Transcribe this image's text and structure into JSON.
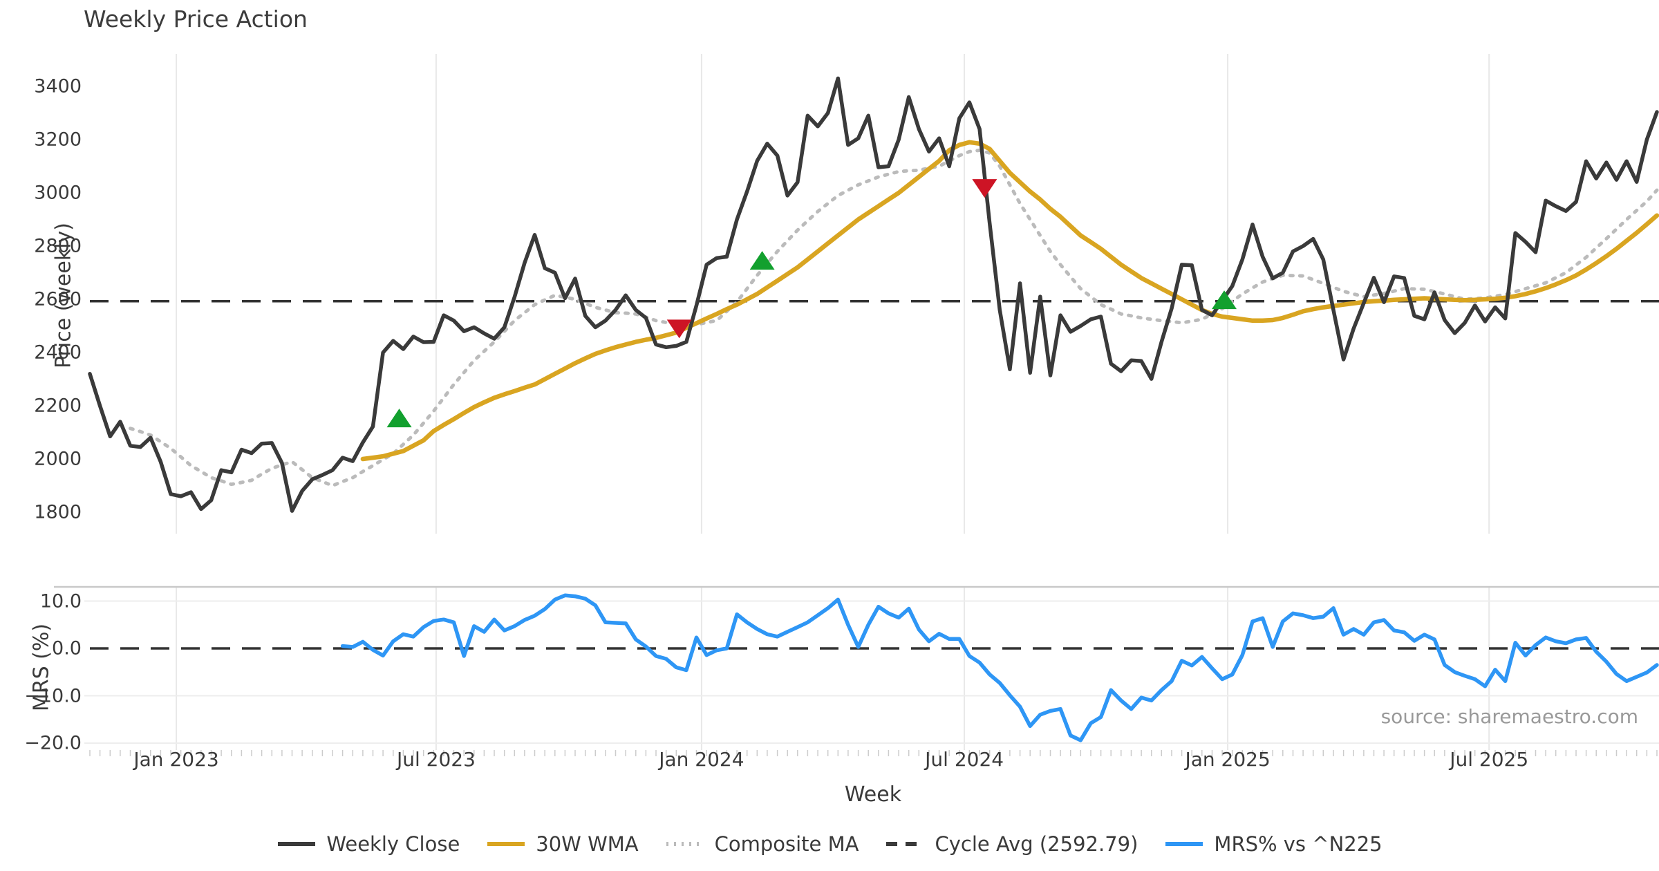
{
  "title": "Weekly Price Action",
  "source_note": "source: sharemaestro.com",
  "colors": {
    "close": "#3a3a3a",
    "wma": "#d9a521",
    "composite": "#bbbbbb",
    "cycle_dash": "#333333",
    "mrs": "#2e96f5",
    "buy_marker": "#12a02e",
    "sell_marker": "#cd1425",
    "grid": "#e8e8e8",
    "spine": "#c9c9c9",
    "minor_tick": "#cccccc",
    "source_text": "#999999"
  },
  "legend": [
    {
      "label": "Weekly Close",
      "style": "solid",
      "color": "#3a3a3a"
    },
    {
      "label": "30W WMA",
      "style": "solid",
      "color": "#d9a521"
    },
    {
      "label": "Composite MA",
      "style": "dotted",
      "color": "#bbbbbb"
    },
    {
      "label": "Cycle Avg (2592.79)",
      "style": "dashed",
      "color": "#3a3a3a"
    },
    {
      "label": "MRS% vs ^N225",
      "style": "solid",
      "color": "#2e96f5"
    }
  ],
  "chart_data": {
    "type": "line",
    "title": "Weekly Price Action",
    "xlabel": "Week",
    "weeks_total": 156,
    "x_tick_labels": [
      "Jan 2023",
      "Jul 2023",
      "Jan 2024",
      "Jul 2024",
      "Jan 2025",
      "Jul 2025"
    ],
    "x_gridline_weeks": [
      8.55,
      34.25,
      60.5,
      86.5,
      112.55,
      138.4
    ],
    "panels": [
      {
        "ylabel": "Price (weekly)",
        "yticks": [
          3400,
          3200,
          3000,
          2800,
          2600,
          2400,
          2200,
          2000,
          1800
        ],
        "ylim": [
          1720,
          3520
        ],
        "cycle_avg": 2592.79,
        "series": [
          {
            "name": "Weekly Close",
            "start_week": 0,
            "values": [
              2320,
              2200,
              2085,
              2140,
              2050,
              2045,
              2080,
              1990,
              1868,
              1860,
              1875,
              1812,
              1845,
              1958,
              1950,
              2035,
              2022,
              2058,
              2060,
              1985,
              1805,
              1880,
              1924,
              1940,
              1958,
              2005,
              1992,
              2062,
              2122,
              2400,
              2444,
              2413,
              2460,
              2439,
              2440,
              2540,
              2520,
              2480,
              2495,
              2472,
              2452,
              2495,
              2608,
              2737,
              2842,
              2717,
              2700,
              2604,
              2678,
              2538,
              2495,
              2520,
              2560,
              2615,
              2560,
              2530,
              2430,
              2420,
              2425,
              2440,
              2577,
              2730,
              2755,
              2760,
              2900,
              3005,
              3120,
              3185,
              3140,
              2990,
              3040,
              3290,
              3250,
              3300,
              3430,
              3180,
              3205,
              3290,
              3096,
              3100,
              3200,
              3360,
              3240,
              3155,
              3205,
              3100,
              3280,
              3340,
              3240,
              2886,
              2560,
              2337,
              2660,
              2324,
              2610,
              2314,
              2540,
              2478,
              2500,
              2525,
              2535,
              2358,
              2330,
              2371,
              2368,
              2301,
              2440,
              2566,
              2730,
              2728,
              2560,
              2540,
              2595,
              2650,
              2750,
              2881,
              2760,
              2679,
              2700,
              2780,
              2800,
              2827,
              2750,
              2560,
              2374,
              2490,
              2586,
              2681,
              2589,
              2686,
              2680,
              2538,
              2525,
              2626,
              2522,
              2473,
              2512,
              2577,
              2517,
              2570,
              2528,
              2849,
              2816,
              2777,
              2971,
              2950,
              2932,
              2966,
              3119,
              3054,
              3114,
              3049,
              3119,
              3041,
              3200,
              3304
            ]
          },
          {
            "name": "30W WMA",
            "start_week": 27,
            "values": [
              2000,
              2005,
              2010,
              2020,
              2030,
              2050,
              2070,
              2105,
              2128,
              2150,
              2173,
              2195,
              2213,
              2230,
              2243,
              2255,
              2268,
              2280,
              2300,
              2320,
              2340,
              2360,
              2378,
              2395,
              2408,
              2420,
              2430,
              2440,
              2448,
              2455,
              2465,
              2475,
              2493,
              2510,
              2528,
              2545,
              2563,
              2580,
              2600,
              2620,
              2645,
              2670,
              2695,
              2720,
              2750,
              2780,
              2810,
              2840,
              2870,
              2900,
              2925,
              2950,
              2975,
              3000,
              3030,
              3060,
              3090,
              3120,
              3160,
              3180,
              3190,
              3185,
              3165,
              3120,
              3075,
              3040,
              3005,
              2975,
              2940,
              2910,
              2875,
              2840,
              2815,
              2790,
              2760,
              2730,
              2705,
              2680,
              2660,
              2640,
              2620,
              2600,
              2580,
              2560,
              2545,
              2535,
              2530,
              2525,
              2520,
              2520,
              2522,
              2530,
              2542,
              2555,
              2563,
              2570,
              2575,
              2580,
              2585,
              2590,
              2593,
              2595,
              2598,
              2600,
              2602,
              2604,
              2602,
              2600,
              2598,
              2597,
              2598,
              2600,
              2602,
              2606,
              2612,
              2620,
              2630,
              2642,
              2656,
              2672,
              2690,
              2712,
              2736,
              2762,
              2790,
              2820,
              2850,
              2882,
              2915
            ]
          },
          {
            "name": "Composite MA",
            "start_week": 4,
            "values": [
              2115,
              2103,
              2090,
              2065,
              2040,
              2008,
              1975,
              1953,
              1930,
              1918,
              1905,
              1912,
              1920,
              1943,
              1965,
              1978,
              1990,
              1960,
              1930,
              1915,
              1900,
              1915,
              1930,
              1953,
              1975,
              1998,
              2020,
              2055,
              2090,
              2135,
              2180,
              2230,
              2280,
              2325,
              2370,
              2405,
              2440,
              2480,
              2520,
              2550,
              2580,
              2598,
              2615,
              2608,
              2600,
              2585,
              2570,
              2560,
              2550,
              2548,
              2545,
              2533,
              2520,
              2513,
              2505,
              2505,
              2505,
              2513,
              2520,
              2555,
              2590,
              2640,
              2690,
              2735,
              2780,
              2820,
              2860,
              2895,
              2930,
              2960,
              2990,
              3010,
              3030,
              3045,
              3060,
              3070,
              3080,
              3083,
              3085,
              3093,
              3100,
              3120,
              3140,
              3155,
              3160,
              3150,
              3100,
              3030,
              2960,
              2900,
              2840,
              2780,
              2730,
              2685,
              2640,
              2610,
              2580,
              2563,
              2545,
              2538,
              2530,
              2525,
              2520,
              2516,
              2512,
              2518,
              2525,
              2545,
              2565,
              2593,
              2620,
              2643,
              2665,
              2678,
              2690,
              2689,
              2688,
              2674,
              2660,
              2645,
              2630,
              2620,
              2610,
              2616,
              2622,
              2631,
              2640,
              2639,
              2638,
              2629,
              2620,
              2610,
              2600,
              2603,
              2605,
              2612,
              2618,
              2629,
              2640,
              2651,
              2662,
              2681,
              2700,
              2729,
              2758,
              2793,
              2828,
              2864,
              2900,
              2934,
              2968,
              3010
            ]
          }
        ],
        "markers": {
          "buy": [
            {
              "week": 30.6,
              "price": 2153
            },
            {
              "week": 66.5,
              "price": 2745
            },
            {
              "week": 112.2,
              "price": 2597
            }
          ],
          "sell": [
            {
              "week": 58.3,
              "price": 2490
            },
            {
              "week": 88.5,
              "price": 3018
            }
          ]
        }
      },
      {
        "ylabel": "MRS (%)",
        "yticks": [
          10.0,
          0.0,
          -10.0,
          -20.0
        ],
        "ylim": [
          -21.5,
          13
        ],
        "zero_line": 0.0,
        "series": [
          {
            "name": "MRS% vs ^N225",
            "start_week": 25,
            "values": [
              0.5,
              0.3,
              1.4,
              -0.3,
              -1.5,
              1.5,
              3.0,
              2.5,
              4.5,
              5.8,
              6.1,
              5.5,
              -1.6,
              4.7,
              3.5,
              6.1,
              3.8,
              4.7,
              6.0,
              6.9,
              8.3,
              10.3,
              11.2,
              11.0,
              10.5,
              9.1,
              5.5,
              5.4,
              5.3,
              1.9,
              0.4,
              -1.6,
              -2.2,
              -4.0,
              -4.6,
              2.3,
              -1.4,
              -0.4,
              0.0,
              7.2,
              5.5,
              4.1,
              3.0,
              2.5,
              3.5,
              4.5,
              5.5,
              7.0,
              8.5,
              10.3,
              5.0,
              0.3,
              5.0,
              8.8,
              7.4,
              6.5,
              8.4,
              4.0,
              1.5,
              3.1,
              2.0,
              2.0,
              -1.6,
              -3.0,
              -5.5,
              -7.3,
              -9.9,
              -12.3,
              -16.4,
              -14.0,
              -13.2,
              -12.8,
              -18.4,
              -19.4,
              -15.8,
              -14.5,
              -8.8,
              -11.0,
              -12.8,
              -10.4,
              -11.0,
              -8.8,
              -6.9,
              -2.6,
              -3.6,
              -1.8,
              -4.2,
              -6.5,
              -5.5,
              -1.4,
              5.7,
              6.4,
              0.3,
              5.7,
              7.4,
              7.0,
              6.4,
              6.7,
              8.5,
              2.9,
              4.1,
              2.9,
              5.5,
              6.0,
              3.8,
              3.4,
              1.6,
              2.9,
              1.9,
              -3.5,
              -5.0,
              -5.8,
              -6.5,
              -8.0,
              -4.5,
              -6.9,
              1.2,
              -1.5,
              0.7,
              2.3,
              1.5,
              1.1,
              1.9,
              2.2,
              -0.7,
              -2.8,
              -5.4,
              -6.9,
              -6.0,
              -5.1,
              -3.5
            ]
          }
        ]
      }
    ]
  }
}
